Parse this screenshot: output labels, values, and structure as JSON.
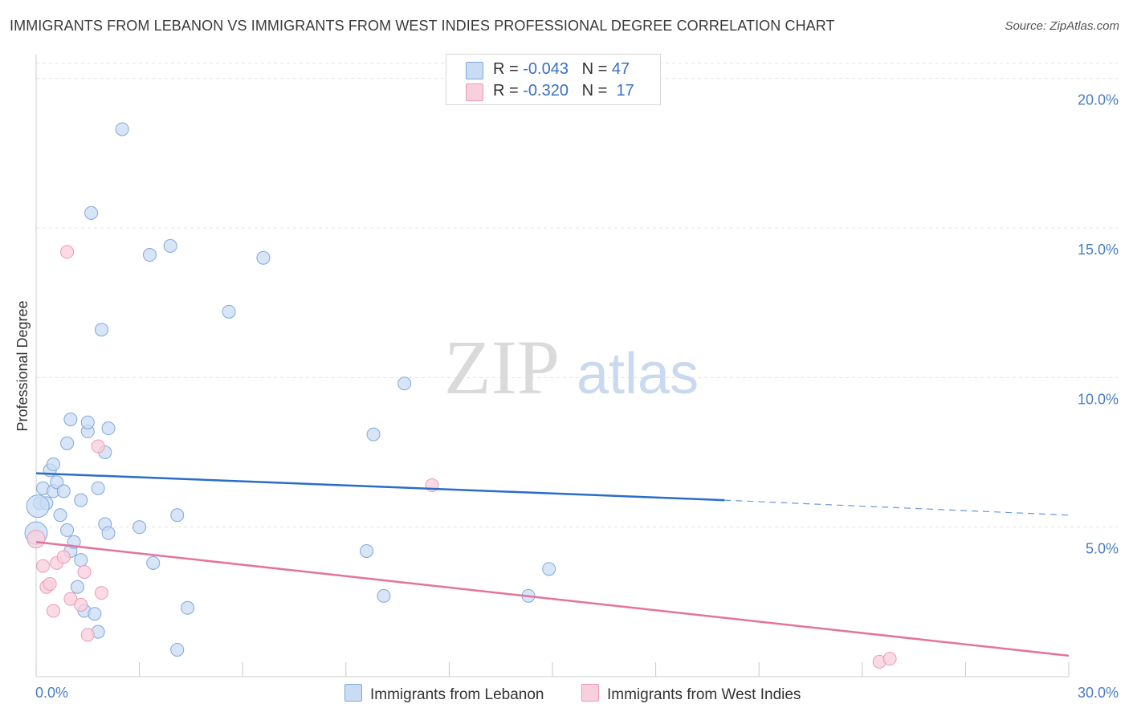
{
  "title": "IMMIGRANTS FROM LEBANON VS IMMIGRANTS FROM WEST INDIES PROFESSIONAL DEGREE CORRELATION CHART",
  "source": "Source: ZipAtlas.com",
  "watermark": {
    "zip": "ZIP",
    "atlas": "atlas"
  },
  "legend_top": [
    {
      "r_label": "R =",
      "r_value": "-0.043",
      "n_label": "N =",
      "n_value": "47",
      "color": "#a9c8ee"
    },
    {
      "r_label": "R =",
      "r_value": "-0.320",
      "n_label": "N =",
      "n_value": "17",
      "color": "#f5b9cd"
    }
  ],
  "legend_bottom": [
    {
      "label": "Immigrants from Lebanon",
      "color": "#a9c8ee"
    },
    {
      "label": "Immigrants from West Indies",
      "color": "#f5b9cd"
    }
  ],
  "colors": {
    "blue_point_fill": "#c9dcf4",
    "blue_point_stroke": "#7fa8dc",
    "blue_line": "#2a6dc9",
    "pink_point_fill": "#f8cfdc",
    "pink_point_stroke": "#ee9ab4",
    "pink_line": "#e4739c",
    "grid": "#e4e4e4",
    "tick_label": "#4a7cc4"
  },
  "chart_data": {
    "type": "scatter",
    "ylabel": "Professional Degree",
    "xlim": [
      0,
      30
    ],
    "ylim": [
      0,
      20.5
    ],
    "y_ticks": [
      5,
      10,
      15,
      20
    ],
    "y_tick_labels": [
      "5.0%",
      "10.0%",
      "15.0%",
      "20.0%"
    ],
    "x_tick_labels": [
      "0.0%",
      "30.0%"
    ],
    "grid": "horizontal dashed",
    "series": [
      {
        "name": "Immigrants from Lebanon",
        "points": [
          [
            0.0,
            4.8
          ],
          [
            0.1,
            5.8
          ],
          [
            0.2,
            6.3
          ],
          [
            0.3,
            5.8
          ],
          [
            0.4,
            6.9
          ],
          [
            0.5,
            7.1
          ],
          [
            0.5,
            6.2
          ],
          [
            0.6,
            6.5
          ],
          [
            0.7,
            5.4
          ],
          [
            0.8,
            6.2
          ],
          [
            0.9,
            4.9
          ],
          [
            0.9,
            7.8
          ],
          [
            1.0,
            4.2
          ],
          [
            1.0,
            8.6
          ],
          [
            1.1,
            4.5
          ],
          [
            1.2,
            3.0
          ],
          [
            1.3,
            3.9
          ],
          [
            1.3,
            5.9
          ],
          [
            1.4,
            2.2
          ],
          [
            1.5,
            8.2
          ],
          [
            1.5,
            8.5
          ],
          [
            1.6,
            15.5
          ],
          [
            1.7,
            2.1
          ],
          [
            1.8,
            1.5
          ],
          [
            1.8,
            6.3
          ],
          [
            1.9,
            11.6
          ],
          [
            2.0,
            7.5
          ],
          [
            2.0,
            5.1
          ],
          [
            2.1,
            8.3
          ],
          [
            2.1,
            4.8
          ],
          [
            2.5,
            18.3
          ],
          [
            3.0,
            5.0
          ],
          [
            3.3,
            14.1
          ],
          [
            3.4,
            3.8
          ],
          [
            3.9,
            14.4
          ],
          [
            4.1,
            0.9
          ],
          [
            4.1,
            5.4
          ],
          [
            4.4,
            2.3
          ],
          [
            5.6,
            12.2
          ],
          [
            6.6,
            14.0
          ],
          [
            9.6,
            4.2
          ],
          [
            9.8,
            8.1
          ],
          [
            10.1,
            2.7
          ],
          [
            10.7,
            9.8
          ],
          [
            14.3,
            2.7
          ],
          [
            14.9,
            3.6
          ],
          [
            0.05,
            5.7
          ]
        ]
      },
      {
        "name": "Immigrants from West Indies",
        "points": [
          [
            0.0,
            4.6
          ],
          [
            0.2,
            3.7
          ],
          [
            0.3,
            3.0
          ],
          [
            0.4,
            3.1
          ],
          [
            0.5,
            2.2
          ],
          [
            0.6,
            3.8
          ],
          [
            0.8,
            4.0
          ],
          [
            0.9,
            14.2
          ],
          [
            1.0,
            2.6
          ],
          [
            1.3,
            2.4
          ],
          [
            1.4,
            3.5
          ],
          [
            1.5,
            1.4
          ],
          [
            1.8,
            7.7
          ],
          [
            1.9,
            2.8
          ],
          [
            11.5,
            6.4
          ],
          [
            24.5,
            0.5
          ],
          [
            24.8,
            0.6
          ]
        ]
      }
    ],
    "trend_lines": [
      {
        "series": "Immigrants from Lebanon",
        "solid": [
          [
            0,
            6.8
          ],
          [
            20,
            5.9
          ]
        ],
        "dashed": [
          [
            20,
            5.9
          ],
          [
            30,
            5.4
          ]
        ]
      },
      {
        "series": "Immigrants from West Indies",
        "solid": [
          [
            0,
            4.5
          ],
          [
            30,
            0.7
          ]
        ]
      }
    ]
  }
}
